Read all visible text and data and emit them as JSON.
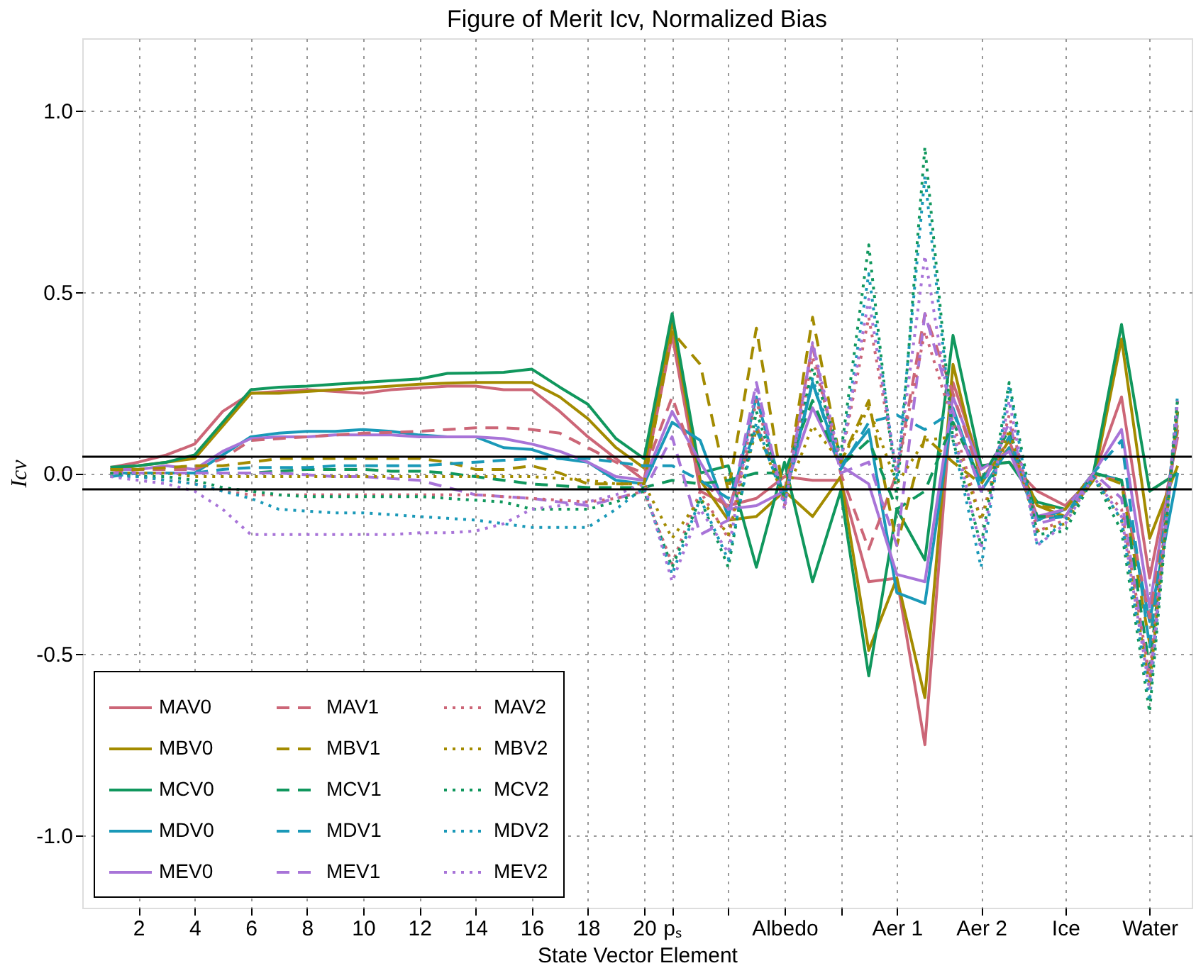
{
  "chart_data": {
    "type": "line",
    "title": "Figure of Merit Icv, Normalized Bias",
    "xlabel": "State Vector Element",
    "ylabel": "Icv",
    "x": [
      1,
      2,
      3,
      4,
      5,
      6,
      7,
      8,
      9,
      10,
      11,
      12,
      13,
      14,
      15,
      16,
      17,
      18,
      19,
      20,
      21,
      22,
      23,
      24,
      25,
      26,
      27,
      28,
      29,
      30,
      31,
      32,
      33,
      34,
      35,
      36,
      37,
      38,
      39
    ],
    "series": [
      {
        "name": "MAV0",
        "color": "#cc6677",
        "line_style": "solid",
        "values": [
          0.015,
          0.03,
          0.05,
          0.08,
          0.17,
          0.22,
          0.225,
          0.23,
          0.225,
          0.22,
          0.23,
          0.235,
          0.24,
          0.24,
          0.23,
          0.23,
          0.17,
          0.1,
          0.04,
          -0.02,
          0.38,
          -0.05,
          -0.09,
          -0.07,
          -0.01,
          -0.02,
          -0.02,
          -0.3,
          -0.29,
          -0.75,
          0.25,
          0.02,
          0.03,
          -0.05,
          -0.09,
          -0.01,
          0.21,
          -0.29,
          0.1
        ]
      },
      {
        "name": "MBV0",
        "color": "#a38b00",
        "line_style": "solid",
        "values": [
          0.01,
          0.02,
          0.03,
          0.04,
          0.13,
          0.22,
          0.22,
          0.225,
          0.23,
          0.235,
          0.24,
          0.245,
          0.248,
          0.25,
          0.25,
          0.25,
          0.21,
          0.15,
          0.07,
          0.014,
          0.42,
          -0.02,
          -0.13,
          -0.12,
          -0.05,
          -0.12,
          -0.01,
          -0.49,
          -0.29,
          -0.62,
          0.3,
          -0.02,
          0.07,
          -0.09,
          -0.12,
          -0.02,
          0.37,
          -0.18,
          0.02
        ]
      },
      {
        "name": "MCV0",
        "color": "#10975d",
        "line_style": "solid",
        "values": [
          0.016,
          0.02,
          0.03,
          0.05,
          0.14,
          0.23,
          0.237,
          0.24,
          0.245,
          0.25,
          0.255,
          0.26,
          0.275,
          0.276,
          0.278,
          0.287,
          0.237,
          0.19,
          0.095,
          0.04,
          0.44,
          0.0,
          0.02,
          -0.26,
          0.03,
          -0.3,
          -0.05,
          -0.56,
          -0.1,
          -0.24,
          0.38,
          0.02,
          0.03,
          -0.08,
          -0.1,
          0.0,
          0.41,
          -0.05,
          0.0
        ]
      },
      {
        "name": "MDV0",
        "color": "#1a99b8",
        "line_style": "solid",
        "values": [
          0.0,
          0.0,
          0.0,
          0.0,
          0.05,
          0.1,
          0.11,
          0.115,
          0.115,
          0.12,
          0.115,
          0.105,
          0.1,
          0.1,
          0.07,
          0.065,
          0.04,
          0.03,
          -0.02,
          -0.03,
          0.14,
          0.09,
          -0.12,
          0.21,
          -0.07,
          0.25,
          0.02,
          0.12,
          -0.33,
          -0.36,
          0.18,
          -0.05,
          0.07,
          -0.13,
          -0.1,
          0.0,
          -0.02,
          -0.41,
          0.0
        ]
      },
      {
        "name": "MEV0",
        "color": "#a874d8",
        "line_style": "solid",
        "values": [
          0.01,
          0.01,
          0.02,
          0.01,
          0.06,
          0.095,
          0.1,
          0.1,
          0.105,
          0.105,
          0.105,
          0.1,
          0.1,
          0.1,
          0.095,
          0.08,
          0.06,
          0.03,
          -0.01,
          -0.02,
          0.17,
          0.03,
          -0.1,
          -0.09,
          -0.05,
          0.18,
          0.02,
          -0.03,
          -0.28,
          -0.3,
          0.21,
          0.01,
          0.06,
          -0.12,
          -0.1,
          0.0,
          0.12,
          -0.37,
          0.12
        ]
      },
      {
        "name": "MAV1",
        "color": "#cc6677",
        "line_style": "dashed",
        "values": [
          0.0,
          0.01,
          0.01,
          0.01,
          0.04,
          0.09,
          0.095,
          0.1,
          0.105,
          0.11,
          0.112,
          0.115,
          0.12,
          0.125,
          0.125,
          0.12,
          0.11,
          0.07,
          0.03,
          0.0,
          0.21,
          -0.01,
          -0.1,
          0.13,
          -0.05,
          0.35,
          0.0,
          -0.21,
          0.0,
          0.44,
          0.22,
          -0.02,
          0.09,
          -0.12,
          -0.12,
          -0.01,
          -0.02,
          -0.4,
          0.12
        ]
      },
      {
        "name": "MBV1",
        "color": "#a38b00",
        "line_style": "dashed",
        "values": [
          0.01,
          0.01,
          0.015,
          0.02,
          0.02,
          0.03,
          0.04,
          0.04,
          0.04,
          0.04,
          0.04,
          0.04,
          0.03,
          0.01,
          0.01,
          0.02,
          0.0,
          -0.03,
          -0.03,
          -0.03,
          0.39,
          0.3,
          -0.05,
          0.4,
          -0.07,
          0.43,
          0.03,
          0.2,
          -0.2,
          0.1,
          0.03,
          -0.03,
          0.09,
          -0.09,
          -0.1,
          0.0,
          -0.03,
          -0.47,
          0.14
        ]
      },
      {
        "name": "MCV1",
        "color": "#10975d",
        "line_style": "dashed",
        "values": [
          0.0,
          0.0,
          0.0,
          0.0,
          0.0,
          0.0,
          0.005,
          0.01,
          0.01,
          0.01,
          0.005,
          0.005,
          0.0,
          -0.01,
          -0.02,
          -0.03,
          -0.035,
          -0.04,
          -0.04,
          -0.04,
          -0.02,
          -0.03,
          -0.02,
          0.0,
          0.0,
          0.2,
          0.02,
          0.09,
          -0.1,
          -0.05,
          0.14,
          -0.02,
          0.12,
          -0.12,
          -0.12,
          0.0,
          -0.02,
          -0.54,
          0.17
        ]
      },
      {
        "name": "MDV1",
        "color": "#1a99b8",
        "line_style": "dashed",
        "values": [
          -0.01,
          0.0,
          0.0,
          0.0,
          0.01,
          0.015,
          0.015,
          0.015,
          0.02,
          0.02,
          0.02,
          0.02,
          0.025,
          0.03,
          0.035,
          0.04,
          0.04,
          0.04,
          0.03,
          0.02,
          0.02,
          -0.02,
          -0.07,
          0.12,
          -0.06,
          0.25,
          0.01,
          0.14,
          0.16,
          0.12,
          0.17,
          -0.03,
          0.1,
          -0.13,
          -0.12,
          0.0,
          0.09,
          -0.48,
          0.16
        ]
      },
      {
        "name": "MEV1",
        "color": "#a874d8",
        "line_style": "dashed",
        "values": [
          0.0,
          0.0,
          0.0,
          0.0,
          0.0,
          0.0,
          0.0,
          -0.005,
          -0.01,
          -0.01,
          -0.015,
          -0.02,
          -0.04,
          -0.06,
          -0.065,
          -0.07,
          -0.08,
          -0.09,
          -0.07,
          -0.05,
          0.1,
          -0.17,
          -0.13,
          0.25,
          -0.09,
          0.36,
          0.0,
          0.03,
          -0.2,
          0.44,
          0.17,
          -0.05,
          0.14,
          -0.14,
          -0.12,
          0.0,
          -0.07,
          -0.58,
          0.17
        ]
      },
      {
        "name": "MAV2",
        "color": "#cc6677",
        "line_style": "dotted",
        "values": [
          0.0,
          -0.01,
          -0.02,
          -0.03,
          -0.05,
          -0.06,
          -0.06,
          -0.06,
          -0.06,
          -0.06,
          -0.06,
          -0.06,
          -0.06,
          -0.06,
          -0.065,
          -0.07,
          -0.075,
          -0.08,
          -0.07,
          -0.05,
          -0.25,
          -0.05,
          -0.18,
          0.2,
          -0.09,
          0.32,
          0.03,
          0.43,
          0.0,
          0.39,
          0.14,
          -0.13,
          0.16,
          -0.16,
          -0.13,
          -0.01,
          -0.1,
          -0.56,
          0.2
        ]
      },
      {
        "name": "MBV2",
        "color": "#a38b00",
        "line_style": "dotted",
        "values": [
          0.0,
          0.0,
          0.0,
          -0.01,
          -0.01,
          -0.01,
          -0.01,
          -0.01,
          -0.01,
          -0.01,
          -0.01,
          -0.01,
          -0.01,
          -0.01,
          -0.01,
          -0.01,
          -0.015,
          -0.02,
          -0.03,
          -0.03,
          -0.18,
          -0.07,
          -0.17,
          0.12,
          -0.07,
          0.13,
          0.03,
          0.18,
          -0.03,
          0.09,
          0.1,
          -0.13,
          0.12,
          -0.16,
          -0.14,
          -0.01,
          -0.13,
          -0.59,
          0.18
        ]
      },
      {
        "name": "MCV2",
        "color": "#10975d",
        "line_style": "dotted",
        "values": [
          0.0,
          -0.01,
          -0.01,
          -0.02,
          -0.04,
          -0.05,
          -0.06,
          -0.065,
          -0.065,
          -0.065,
          -0.065,
          -0.065,
          -0.07,
          -0.075,
          -0.08,
          -0.1,
          -0.1,
          -0.1,
          -0.08,
          -0.05,
          -0.26,
          -0.07,
          -0.26,
          0.17,
          -0.07,
          0.29,
          0.05,
          0.63,
          -0.07,
          0.9,
          0.09,
          -0.2,
          0.25,
          -0.17,
          -0.16,
          -0.01,
          -0.16,
          -0.66,
          0.21
        ]
      },
      {
        "name": "MDV2",
        "color": "#1a99b8",
        "line_style": "dotted",
        "values": [
          -0.01,
          -0.01,
          -0.02,
          -0.03,
          -0.05,
          -0.07,
          -0.1,
          -0.105,
          -0.11,
          -0.11,
          -0.115,
          -0.12,
          -0.125,
          -0.13,
          -0.14,
          -0.15,
          -0.15,
          -0.15,
          -0.1,
          -0.04,
          -0.28,
          -0.07,
          -0.24,
          0.14,
          -0.08,
          0.26,
          0.03,
          0.55,
          -0.02,
          0.82,
          0.09,
          -0.26,
          0.24,
          -0.2,
          -0.13,
          -0.01,
          -0.13,
          -0.63,
          0.22
        ]
      },
      {
        "name": "MEV2",
        "color": "#a874d8",
        "line_style": "dotted",
        "values": [
          -0.01,
          -0.02,
          -0.03,
          -0.05,
          -0.1,
          -0.17,
          -0.17,
          -0.17,
          -0.17,
          -0.17,
          -0.17,
          -0.165,
          -0.165,
          -0.16,
          -0.14,
          -0.1,
          -0.09,
          -0.08,
          -0.06,
          -0.03,
          -0.3,
          -0.1,
          -0.22,
          0.24,
          -0.1,
          0.36,
          0.03,
          0.48,
          0.0,
          0.6,
          0.12,
          -0.21,
          0.2,
          -0.2,
          -0.14,
          -0.01,
          -0.12,
          -0.6,
          0.2
        ]
      }
    ],
    "xlim": [
      0,
      39.5
    ],
    "xticks": [
      2,
      4,
      6,
      8,
      10,
      12,
      14,
      16,
      18,
      20,
      {
        "value": 21,
        "label": "pₛ"
      },
      {
        "value": 23,
        "label": null
      },
      {
        "value": 25,
        "label": "Albedo"
      },
      {
        "value": 27,
        "label": null
      },
      {
        "value": 29,
        "label": "Aer 1"
      },
      {
        "value": 32,
        "label": "Aer 2"
      },
      {
        "value": 35,
        "label": "Ice"
      },
      {
        "value": 38,
        "label": "Water"
      }
    ],
    "ylim": [
      -1.2,
      1.2
    ],
    "yticks": [
      {
        "value": -1.0,
        "label": "-1.0"
      },
      {
        "value": -0.5,
        "label": "-0.5"
      },
      {
        "value": 0.0,
        "label": "0.0"
      },
      {
        "value": 0.5,
        "label": "0.5"
      },
      {
        "value": 1.0,
        "label": "1.0"
      }
    ],
    "ref_lines": [
      {
        "axis": "y",
        "value": 0.045,
        "color": "#000000"
      },
      {
        "axis": "y",
        "value": -0.045,
        "color": "#000000"
      }
    ],
    "grid": true,
    "legend": "bottom left",
    "marker": "none"
  }
}
